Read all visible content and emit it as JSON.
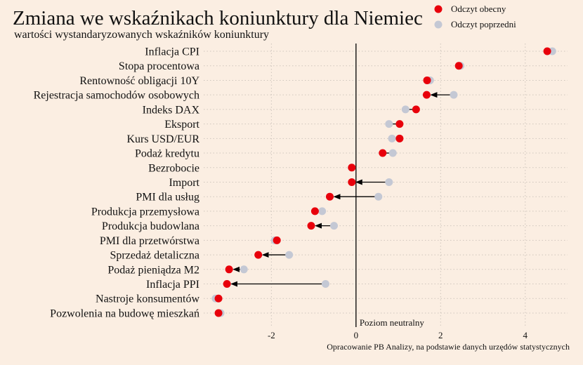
{
  "title": "Zmiana we wskaźnikach koniunktury dla Niemiec",
  "subtitle": "wartości wystandaryzowanych wskaźników koniunktury",
  "source": "Opracowanie PB Analizy, na podstawie danych urzędów statystycznych",
  "colors": {
    "background": "#fbeee2",
    "current": "#e8000b",
    "previous": "#c4c8d4",
    "arrow": "#000000",
    "grid": "#cfc6bd"
  },
  "chart_data": {
    "type": "dumbbell",
    "categories": [
      "Inflacja CPI",
      "Stopa procentowa",
      "Rentowność obligacji 10Y",
      "Rejestracja samochodów osobowych",
      "Indeks DAX",
      "Eksport",
      "Kurs USD/EUR",
      "Podaż kredytu",
      "Bezrobocie",
      "Import",
      "PMI dla usług",
      "Produkcja przemysłowa",
      "Produkcja budowlana",
      "PMI dla przetwórstwa",
      "Sprzedaż detaliczna",
      "Podaż pieniądza M2",
      "Inflacja PPI",
      "Nastroje konsumentów",
      "Pozwolenia na budowę mieszkań"
    ],
    "series": [
      {
        "name": "Odczyt obecny",
        "values": [
          4.52,
          2.43,
          1.68,
          1.67,
          1.42,
          1.03,
          1.03,
          0.63,
          -0.1,
          -0.1,
          -0.62,
          -0.97,
          -1.06,
          -1.87,
          -2.31,
          -3.0,
          -3.05,
          -3.25,
          -3.25
        ]
      },
      {
        "name": "Odczyt poprzedni",
        "values": [
          4.64,
          2.47,
          1.75,
          2.31,
          1.17,
          0.78,
          0.85,
          0.87,
          -0.1,
          0.78,
          0.53,
          -0.8,
          -0.52,
          -1.92,
          -1.58,
          -2.65,
          -0.72,
          -3.32,
          -3.2
        ]
      }
    ],
    "xlim": [
      -3.6,
      5.0
    ],
    "xticks": [
      -2,
      0,
      2,
      4
    ],
    "xtick_labels": [
      "-2",
      "0",
      "2",
      "4"
    ],
    "reference_line": {
      "x": 0,
      "label": "Poziom neutralny"
    },
    "grid": true,
    "legend": "top-right"
  }
}
